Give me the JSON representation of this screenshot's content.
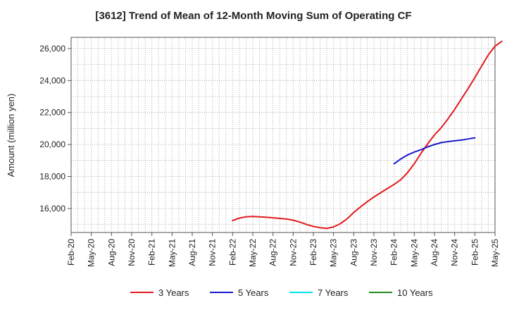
{
  "chart_data": {
    "type": "line",
    "title": "[3612]  Trend of Mean of 12-Month Moving Sum of Operating CF",
    "xlabel": "",
    "ylabel": "Amount (million yen)",
    "ylim": [
      14500,
      26700
    ],
    "yticks": [
      16000,
      18000,
      20000,
      22000,
      24000,
      26000
    ],
    "ytick_labels": [
      "16,000",
      "18,000",
      "20,000",
      "22,000",
      "24,000",
      "26,000"
    ],
    "x_start": "Feb-20",
    "x_months": 63,
    "xtick_labels": [
      "Feb-20",
      "May-20",
      "Aug-20",
      "Nov-20",
      "Feb-21",
      "May-21",
      "Aug-21",
      "Nov-21",
      "Feb-22",
      "May-22",
      "Aug-22",
      "Nov-22",
      "Feb-23",
      "May-23",
      "Aug-23",
      "Nov-23",
      "Feb-24",
      "May-24",
      "Aug-24",
      "Nov-24",
      "Feb-25",
      "May-25"
    ],
    "grid": true,
    "series": [
      {
        "name": "3 Years",
        "color": "#e31a1c",
        "start_month_index": 24,
        "values": [
          15250,
          15400,
          15480,
          15500,
          15480,
          15450,
          15420,
          15380,
          15340,
          15270,
          15150,
          15000,
          14880,
          14800,
          14760,
          14850,
          15050,
          15350,
          15750,
          16100,
          16420,
          16720,
          16990,
          17250,
          17510,
          17800,
          18250,
          18800,
          19450,
          20050,
          20600,
          21050,
          21600,
          22200,
          22850,
          23500,
          24180,
          24900,
          25600,
          26150,
          26450
        ]
      },
      {
        "name": "5 Years",
        "color": "#1a1acd",
        "start_month_index": 48,
        "values": [
          18800,
          19100,
          19350,
          19530,
          19680,
          19850,
          20000,
          20120,
          20180,
          20230,
          20280,
          20350,
          20420
        ]
      },
      {
        "name": "7 Years",
        "color": "#00e5ee",
        "start_month_index": 48,
        "values": []
      },
      {
        "name": "10 Years",
        "color": "#228b22",
        "start_month_index": 48,
        "values": []
      }
    ],
    "legend": {
      "position": "bottom",
      "labels": [
        "3 Years",
        "5 Years",
        "7 Years",
        "10 Years"
      ]
    }
  }
}
